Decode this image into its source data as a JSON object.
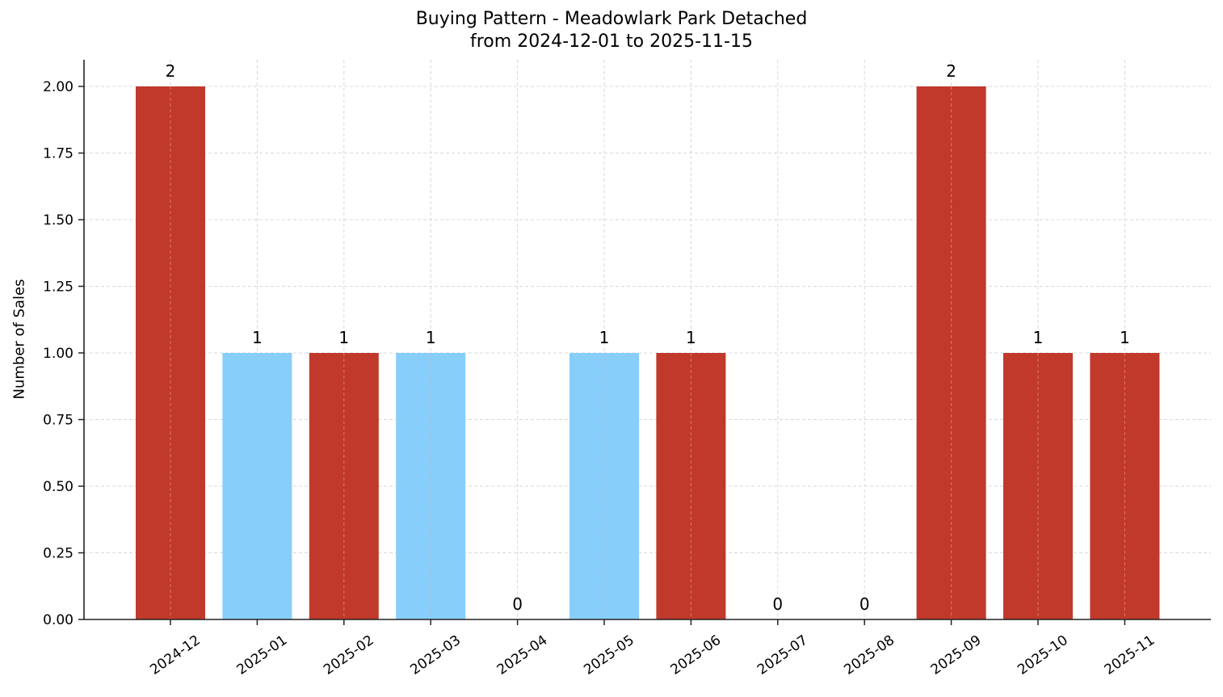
{
  "chart_data": {
    "type": "bar",
    "title": "Buying Pattern - Meadowlark Park Detached",
    "subtitle": "from 2024-12-01 to 2025-11-15",
    "xlabel": "",
    "ylabel": "Number of Sales",
    "categories": [
      "2024-12",
      "2025-01",
      "2025-02",
      "2025-03",
      "2025-04",
      "2025-05",
      "2025-06",
      "2025-07",
      "2025-08",
      "2025-09",
      "2025-10",
      "2025-11"
    ],
    "values": [
      2,
      1,
      1,
      1,
      0,
      1,
      1,
      0,
      0,
      2,
      1,
      1
    ],
    "bar_colors": [
      "#c0392b",
      "#87cefa",
      "#c0392b",
      "#87cefa",
      "#c0392b",
      "#87cefa",
      "#c0392b",
      "#87cefa",
      "#c0392b",
      "#c0392b",
      "#c0392b",
      "#c0392b"
    ],
    "data_labels": [
      "2",
      "1",
      "1",
      "1",
      "0",
      "1",
      "1",
      "0",
      "0",
      "2",
      "1",
      "1"
    ],
    "yticks": [
      "0.00",
      "0.25",
      "0.50",
      "0.75",
      "1.00",
      "1.25",
      "1.50",
      "1.75",
      "2.00"
    ],
    "ylim": [
      0,
      2.1
    ],
    "grid": true,
    "legend": null
  },
  "colors": {
    "red": "#c0392b",
    "blue": "#87cefa",
    "grid": "#d9d9d9",
    "axis": "#222222"
  }
}
